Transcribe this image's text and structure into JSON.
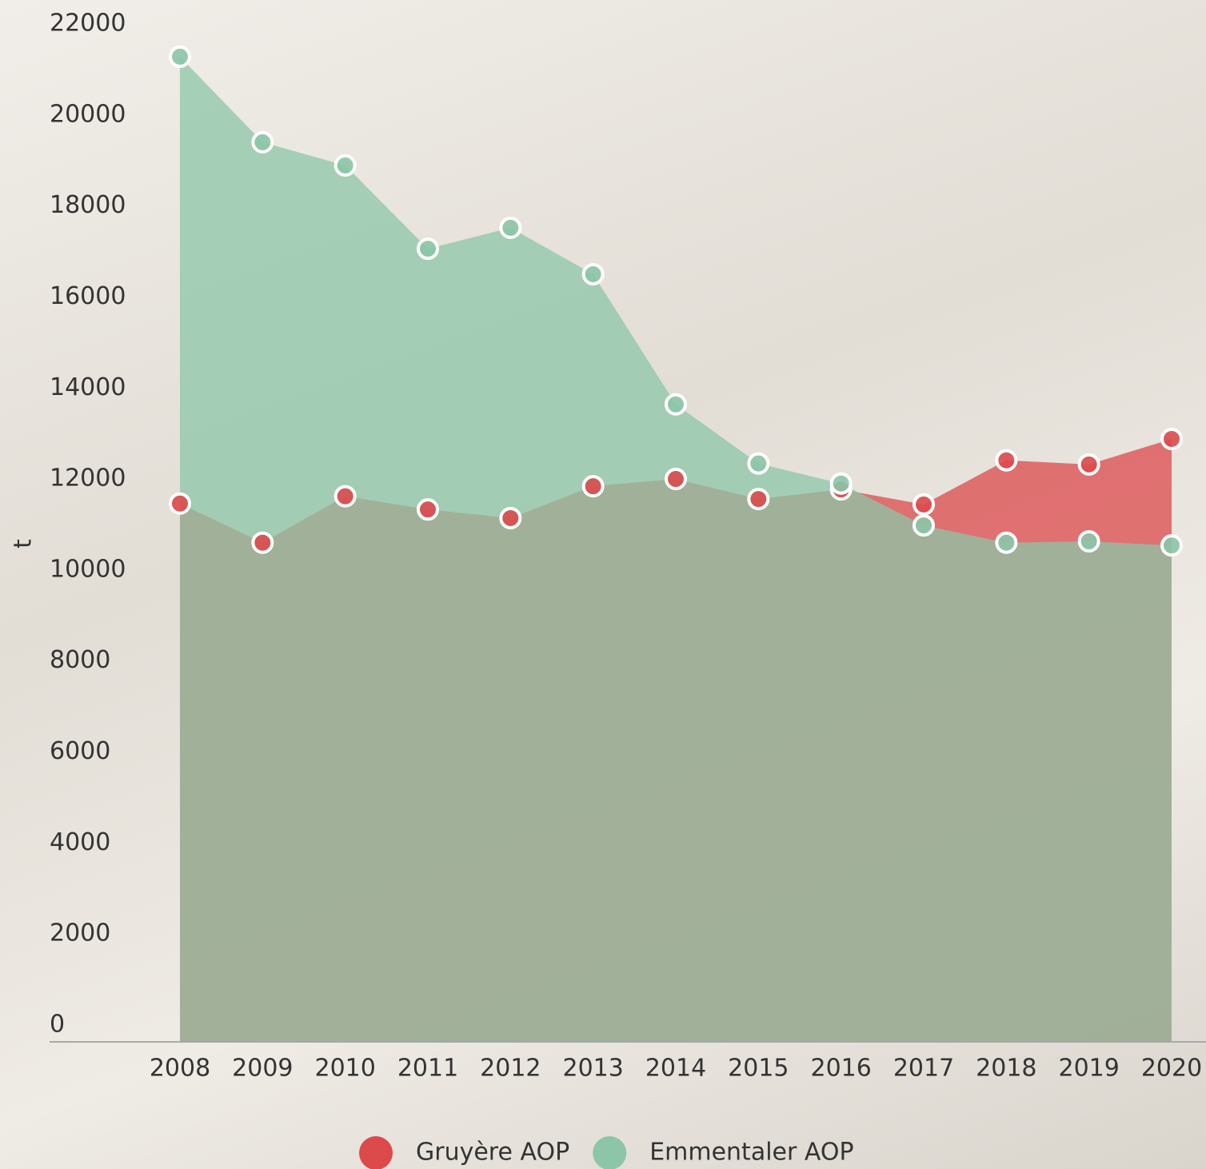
{
  "chart_data": {
    "type": "area",
    "y_label": "t",
    "categories": [
      "2008",
      "2009",
      "2010",
      "2011",
      "2012",
      "2013",
      "2014",
      "2015",
      "2016",
      "2017",
      "2018",
      "2019",
      "2020"
    ],
    "series": [
      {
        "name": "Gruyère AOP",
        "color": "#dc4a4c",
        "values": [
          11830,
          10970,
          11990,
          11700,
          11510,
          12210,
          12370,
          11930,
          12140,
          11810,
          12780,
          12690,
          13250
        ]
      },
      {
        "name": "Emmentaler AOP",
        "color": "#8cc5a7",
        "values": [
          21650,
          19770,
          19260,
          17430,
          17890,
          16870,
          14010,
          12710,
          12270,
          11350,
          10970,
          11000,
          10910
        ]
      }
    ],
    "ylim": [
      0,
      22000
    ],
    "yticks": [
      0,
      2000,
      4000,
      6000,
      8000,
      10000,
      12000,
      14000,
      16000,
      18000,
      20000,
      22000
    ],
    "grid": false
  }
}
